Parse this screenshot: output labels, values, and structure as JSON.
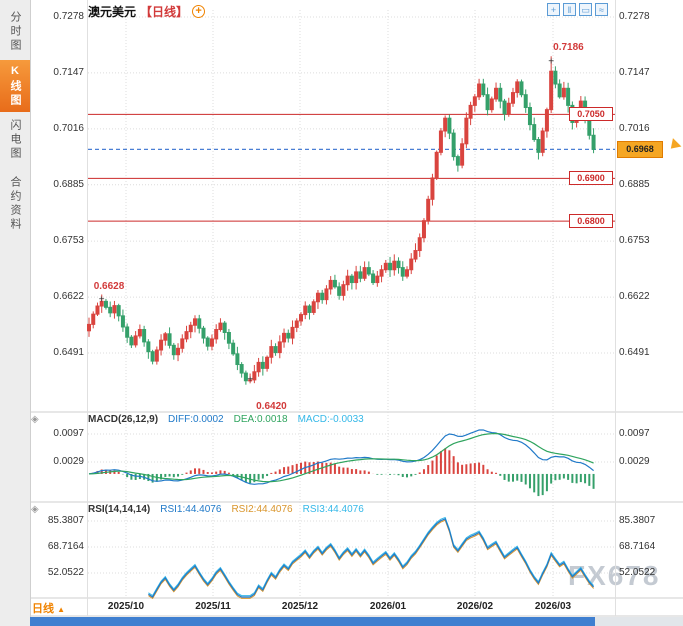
{
  "sidebar": {
    "items": [
      {
        "label": "分时图",
        "active": false
      },
      {
        "label": "K线图",
        "active": true
      },
      {
        "label": "闪电图",
        "active": false
      },
      {
        "label": "合约资料",
        "active": false
      }
    ]
  },
  "header": {
    "symbol": "澳元美元",
    "period": "【日线】",
    "add_icon": "+",
    "toolbar_icons": [
      {
        "name": "crosshair",
        "glyph": "+"
      },
      {
        "name": "bar-style",
        "glyph": "‖"
      },
      {
        "name": "candle-style",
        "glyph": "▭"
      },
      {
        "name": "line-style",
        "glyph": "≈"
      }
    ]
  },
  "chart_data": {
    "type": "candlestick",
    "title": "澳元美元 日线",
    "y_axis_labels": [
      "0.7278",
      "0.7147",
      "0.7016",
      "0.6885",
      "0.6753",
      "0.6622",
      "0.6491"
    ],
    "x_labels": [
      "2025/10",
      "2025/11",
      "2025/12",
      "2026/01",
      "2026/02",
      "2026/03"
    ],
    "hlines": [
      {
        "price": 0.705,
        "label": "0.7050"
      },
      {
        "price": 0.69,
        "label": "0.6900"
      },
      {
        "price": 0.68,
        "label": "0.6800"
      }
    ],
    "current_price": {
      "value": 0.6968,
      "label": "0.6968"
    },
    "annotations": [
      {
        "index": 3,
        "price": 0.6628,
        "label": "0.6628",
        "side": "top"
      },
      {
        "index": 38,
        "price": 0.642,
        "label": "0.6420",
        "side": "bottom"
      },
      {
        "index": 109,
        "price": 0.7186,
        "label": "0.7186",
        "side": "top"
      }
    ],
    "closes": [
      0.6558,
      0.6582,
      0.6601,
      0.6612,
      0.6598,
      0.6585,
      0.6602,
      0.6578,
      0.6552,
      0.6528,
      0.651,
      0.6531,
      0.6546,
      0.6517,
      0.6494,
      0.6472,
      0.6498,
      0.6521,
      0.6536,
      0.6509,
      0.6487,
      0.6502,
      0.6524,
      0.6541,
      0.6556,
      0.6571,
      0.6549,
      0.6526,
      0.6507,
      0.6524,
      0.6546,
      0.6561,
      0.6539,
      0.6514,
      0.6489,
      0.6464,
      0.6444,
      0.6426,
      0.6428,
      0.6447,
      0.6469,
      0.6455,
      0.6481,
      0.6506,
      0.6492,
      0.6517,
      0.6537,
      0.6526,
      0.6551,
      0.6566,
      0.6581,
      0.6601,
      0.6586,
      0.6611,
      0.6631,
      0.6616,
      0.6641,
      0.6661,
      0.6646,
      0.6626,
      0.6651,
      0.6671,
      0.6656,
      0.6681,
      0.6666,
      0.6691,
      0.6676,
      0.6656,
      0.6671,
      0.6686,
      0.6701,
      0.6686,
      0.6706,
      0.6691,
      0.6671,
      0.6686,
      0.6711,
      0.6731,
      0.6761,
      0.6801,
      0.6851,
      0.6901,
      0.6961,
      0.7011,
      0.7041,
      0.7006,
      0.6951,
      0.6931,
      0.6981,
      0.7041,
      0.7071,
      0.7091,
      0.7121,
      0.7096,
      0.7061,
      0.7086,
      0.7111,
      0.7081,
      0.7051,
      0.7076,
      0.7101,
      0.7126,
      0.7096,
      0.7066,
      0.7026,
      0.6991,
      0.6961,
      0.7011,
      0.7061,
      0.7151,
      0.7121,
      0.7091,
      0.7111,
      0.7071,
      0.7031,
      0.7056,
      0.7081,
      0.7041,
      0.7001,
      0.6968
    ],
    "specials": {
      "3": {
        "high": 0.6628
      },
      "38": {
        "low": 0.642
      },
      "109": {
        "high": 0.7186
      }
    },
    "price_range": {
      "top": 0.7278,
      "bottom": 0.6491
    },
    "colors": {
      "up": "#d9443f",
      "down": "#35a06a",
      "diff_line": "#2079c8",
      "dea_line": "#2fa45e",
      "rsi1": "#2079c8",
      "rsi2": "#d9952b",
      "rsi3": "#35b8e8",
      "hline": "#cc2a2a",
      "current": "#4a7fd4"
    }
  },
  "macd_panel": {
    "toggle_glyph": "◈",
    "title": "MACD(26,12,9)",
    "diff": "DIFF:0.0002",
    "dea": "DEA:0.0018",
    "macd": "MACD:-0.0033",
    "axis_labels": [
      "0.0097",
      "0.0029"
    ]
  },
  "rsi_panel": {
    "toggle_glyph": "◈",
    "title": "RSI(14,14,14)",
    "rsi1": "RSI1:44.4076",
    "rsi2": "RSI2:44.4076",
    "rsi3": "RSI3:44.4076",
    "axis_labels": [
      "85.3807",
      "68.7164",
      "52.0522"
    ]
  },
  "footer": {
    "period_label": "日线",
    "arrow": "▲"
  },
  "watermark": "FX678"
}
